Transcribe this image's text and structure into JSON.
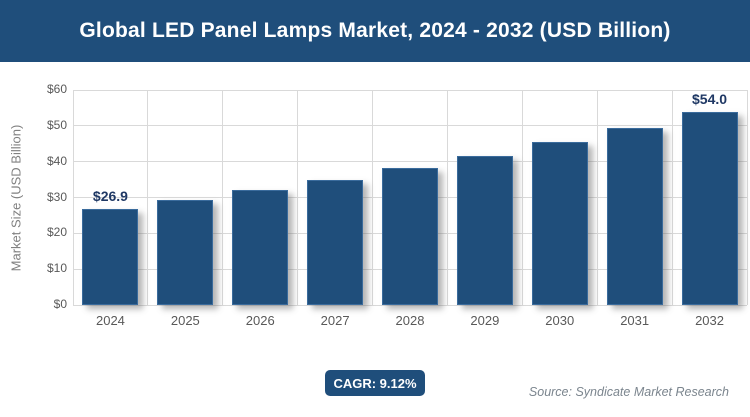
{
  "header": {
    "title": "Global LED Panel Lamps Market, 2024 - 2032 (USD Billion)"
  },
  "chart_data": {
    "type": "bar",
    "title": "Global LED Panel Lamps Market, 2024 - 2032 (USD Billion)",
    "categories": [
      "2024",
      "2025",
      "2026",
      "2027",
      "2028",
      "2029",
      "2030",
      "2031",
      "2032"
    ],
    "values": [
      26.9,
      29.4,
      32.0,
      35.0,
      38.1,
      41.6,
      45.4,
      49.5,
      54.0
    ],
    "value_labels": [
      "$26.9",
      "",
      "",
      "",
      "",
      "",
      "",
      "",
      "$54.0"
    ],
    "xlabel": "",
    "ylabel": "Market Size (USD Billion)",
    "ylim": [
      0,
      60
    ],
    "ytick_step": 10,
    "yticks": [
      "$0",
      "$10",
      "$20",
      "$30",
      "$40",
      "$50",
      "$60"
    ],
    "grid": true,
    "legend": "none",
    "bar_color": "#1f4e7b",
    "value_label_color": "#1f3864"
  },
  "footer": {
    "cagr_label": "CAGR: 9.12%",
    "source": "Source: Syndicate Market Research"
  },
  "colors": {
    "banner": "#1f4e7b",
    "gridline": "#d9d9d9",
    "tick_label": "#595959",
    "axis_title": "#808080",
    "source_text": "#7b858e"
  }
}
